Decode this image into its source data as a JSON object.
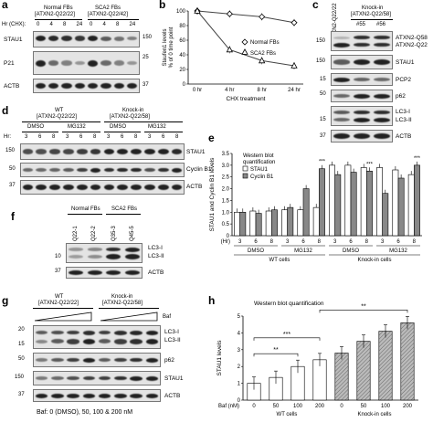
{
  "panel_a": {
    "label": "a",
    "group1": "Normal FBs",
    "group1_geno": "[ATXN2-Q22/22]",
    "group2": "SCA2 FBs",
    "group2_geno": "[ATXN2-Q22/42]",
    "hr_label": "Hr (CHX):",
    "lanes": [
      "0",
      "4",
      "8",
      "24",
      "0",
      "4",
      "8",
      "24"
    ],
    "rows": [
      "STAU1",
      "P21",
      "ACTB"
    ],
    "mw": [
      "150",
      "25",
      "37"
    ]
  },
  "panel_b": {
    "label": "b",
    "xlabel": "CHX treatment",
    "ylabel": "Staufen1 levels\n% of 0 time point",
    "yticks": [
      "0",
      "20",
      "40",
      "60",
      "80",
      "100"
    ],
    "xticks": [
      "0 hr",
      "4 hr",
      "8 hr",
      "24 hr"
    ],
    "legend": [
      "Normal FBs",
      "SCA2 FBs"
    ]
  },
  "panel_c": {
    "label": "c",
    "col1": "ATXN2-Q22/22",
    "group": "Knock-in",
    "group_geno": "[ATXN2-Q22/58]",
    "lanes": [
      "#55",
      "#56"
    ],
    "rows": [
      "ATXN2-Q58",
      "ATXN2-Q22",
      "STAU1",
      "PCP2",
      "p62",
      "LC3-I",
      "LC3-II",
      "ACTB"
    ],
    "mw": [
      "150",
      "150",
      "15",
      "50",
      "15",
      "37"
    ]
  },
  "panel_d": {
    "label": "d",
    "group1": "WT",
    "group1_geno": "[ATXN2-Q22/22]",
    "group2": "Knock-in",
    "group2_geno": "[ATXN2-Q22/58]",
    "hr_label": "Hr:",
    "treat": [
      "DMSO",
      "MG132",
      "DMSO",
      "MG132"
    ],
    "lanes": [
      "3",
      "6",
      "8",
      "3",
      "6",
      "8",
      "3",
      "6",
      "8",
      "3",
      "6",
      "8"
    ],
    "rows": [
      "STAU1",
      "Cyclin B1",
      "ACTB"
    ],
    "mw": [
      "150",
      "50",
      "37"
    ]
  },
  "panel_e": {
    "label": "e",
    "ylabel": "STAU1 and Cyclin B1 levels",
    "legend_title1": "Western blot",
    "legend_title2": "quantification",
    "legend": [
      "STAU1",
      "Cyclin B1"
    ],
    "yticks": [
      "0",
      "0.5",
      "1.0",
      "1.5",
      "2.0",
      "2.5",
      "3.0",
      "3.5"
    ],
    "xticks": [
      "3",
      "6",
      "8",
      "3",
      "6",
      "8",
      "3",
      "6",
      "8",
      "3",
      "6",
      "8"
    ],
    "hr": "(Hr)",
    "treat": [
      "DMSO",
      "MG132",
      "DMSO",
      "MG132"
    ],
    "cells": [
      "WT cells",
      "Knock-in cells"
    ],
    "stars": "***"
  },
  "panel_f": {
    "label": "f",
    "group1": "Normal FBs",
    "group2": "SCA2 FBs",
    "lanes": [
      "Q22-1",
      "Q22-2",
      "Q35-3",
      "Q45-5"
    ],
    "rows": [
      "LC3-I",
      "LC3-II",
      "ACTB"
    ],
    "mw": [
      "10",
      "37"
    ]
  },
  "panel_g": {
    "label": "g",
    "group1": "WT",
    "group1_geno": "[ATXN2-Q22/22]",
    "group2": "Knock-in",
    "group2_geno": "[ATXN2-Q22/58]",
    "baf": "Baf",
    "rows": [
      "LC3-I",
      "LC3-II",
      "p62",
      "STAU1",
      "ACTB"
    ],
    "mw": [
      "20",
      "15",
      "50",
      "150",
      "37"
    ],
    "footer": "Baf: 0 (DMSO), 50, 100 & 200 nM"
  },
  "panel_h": {
    "label": "h",
    "title": "Western blot quantification",
    "ylabel": "STAU1 levels",
    "yticks": [
      "0",
      "1",
      "2",
      "3",
      "4",
      "5"
    ],
    "baf_label": "Baf (nM)",
    "xticks": [
      "0",
      "50",
      "100",
      "200",
      "0",
      "50",
      "100",
      "200"
    ],
    "sig": [
      "**",
      "***",
      "**"
    ],
    "cells": [
      "WT cells",
      "Knock-in cells"
    ]
  },
  "chart_data": [
    {
      "type": "line",
      "panel": "b",
      "xlabel": "CHX treatment",
      "ylabel": "Staufen1 levels % of 0 time point",
      "x": [
        "0 hr",
        "4 hr",
        "8 hr",
        "24 hr"
      ],
      "ylim": [
        0,
        100
      ],
      "series": [
        {
          "name": "Normal FBs",
          "values": [
            100,
            96,
            92,
            84
          ]
        },
        {
          "name": "SCA2 FBs",
          "values": [
            100,
            47,
            32,
            25
          ]
        }
      ]
    },
    {
      "type": "bar",
      "panel": "e",
      "ylabel": "STAU1 and Cyclin B1 levels",
      "categories": [
        "3",
        "6",
        "8",
        "3",
        "6",
        "8",
        "3",
        "6",
        "8",
        "3",
        "6",
        "8"
      ],
      "ylim": [
        0,
        3.5
      ],
      "series": [
        {
          "name": "STAU1",
          "values": [
            1.0,
            1.05,
            1.05,
            1.1,
            1.1,
            1.2,
            3.0,
            3.0,
            2.9,
            2.9,
            2.8,
            2.6
          ]
        },
        {
          "name": "Cyclin B1",
          "values": [
            1.0,
            0.95,
            1.1,
            1.2,
            2.0,
            2.85,
            2.6,
            2.7,
            2.75,
            1.8,
            2.45,
            3.0
          ]
        }
      ]
    },
    {
      "type": "bar",
      "panel": "h",
      "ylabel": "STAU1 levels",
      "categories": [
        "0",
        "50",
        "100",
        "200",
        "0",
        "50",
        "100",
        "200"
      ],
      "ylim": [
        0,
        5
      ],
      "series": [
        {
          "name": "WT cells",
          "values": [
            1.0,
            1.35,
            2.0,
            2.4,
            null,
            null,
            null,
            null
          ]
        },
        {
          "name": "Knock-in cells",
          "values": [
            null,
            null,
            null,
            null,
            2.8,
            3.5,
            4.1,
            4.6
          ]
        }
      ]
    }
  ]
}
